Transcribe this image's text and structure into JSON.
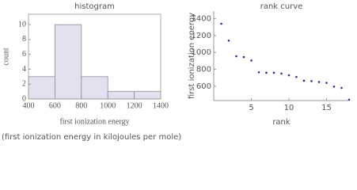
{
  "chart_data": [
    {
      "type": "histogram",
      "title": "histogram",
      "x_label": "first ionization energy",
      "y_label": "count",
      "bins": [
        400,
        600,
        800,
        1000,
        1200,
        1400
      ],
      "values": [
        3,
        10,
        3,
        1,
        1
      ],
      "color": "#e1e1f0",
      "xlim": [
        400,
        1400
      ],
      "xticks": [
        400,
        600,
        800,
        1000,
        1200,
        1400
      ],
      "ylim": [
        0,
        11.4
      ],
      "yticks": [
        0,
        2,
        4,
        6,
        8,
        10
      ]
    },
    {
      "type": "scatter",
      "title": "rank curve",
      "x_label": "rank",
      "y_label": "first ionization energy",
      "x": [
        1,
        2,
        3,
        4,
        5,
        6,
        7,
        8,
        9,
        10,
        11,
        12,
        13,
        14,
        15,
        16,
        17,
        18
      ],
      "values": [
        1340,
        1140,
        955,
        945,
        905,
        765,
        760,
        760,
        750,
        730,
        710,
        665,
        660,
        650,
        640,
        595,
        580,
        440
      ],
      "color": "#2e2e8f",
      "xlim": [
        0,
        18
      ],
      "xticks": [
        5,
        10,
        15
      ],
      "ylim": [
        430,
        1490
      ],
      "yticks": [
        600,
        800,
        1000,
        1200,
        1400
      ]
    }
  ],
  "caption": "(first ionization energy in kilojoules per mole)"
}
